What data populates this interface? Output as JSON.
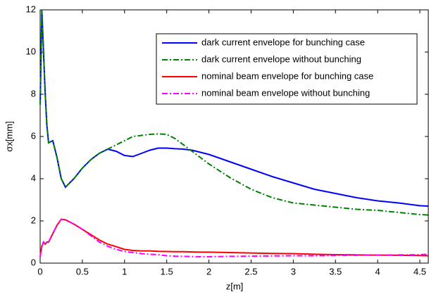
{
  "chart_data": {
    "type": "line",
    "xlabel": "z[m]",
    "ylabel": "σx[mm]",
    "x": [
      0,
      0.02,
      0.04,
      0.06,
      0.08,
      0.1,
      0.15,
      0.2,
      0.25,
      0.3,
      0.4,
      0.5,
      0.6,
      0.7,
      0.8,
      0.9,
      1.0,
      1.1,
      1.2,
      1.3,
      1.4,
      1.5,
      1.6,
      1.7,
      1.8,
      1.9,
      2.0,
      2.25,
      2.5,
      2.75,
      3.0,
      3.25,
      3.5,
      3.75,
      4.0,
      4.25,
      4.5,
      4.6
    ],
    "series": [
      {
        "name": "dark current envelope for bunching case",
        "color": "#0000ff",
        "style": "solid",
        "values": [
          7.5,
          12,
          10,
          8,
          6.5,
          5.7,
          5.8,
          5.0,
          4.0,
          3.6,
          4.0,
          4.5,
          4.9,
          5.2,
          5.4,
          5.3,
          5.1,
          5.05,
          5.2,
          5.35,
          5.45,
          5.45,
          5.42,
          5.4,
          5.35,
          5.25,
          5.15,
          4.8,
          4.45,
          4.1,
          3.8,
          3.5,
          3.3,
          3.1,
          2.95,
          2.85,
          2.72,
          2.7
        ]
      },
      {
        "name": "dark current envelope without bunching",
        "color": "#008000",
        "style": "dashdot",
        "values": [
          7.5,
          12,
          10,
          8,
          6.5,
          5.7,
          5.8,
          5.0,
          4.0,
          3.6,
          4.0,
          4.5,
          4.9,
          5.2,
          5.4,
          5.6,
          5.8,
          6.0,
          6.05,
          6.1,
          6.12,
          6.1,
          5.9,
          5.6,
          5.3,
          5.0,
          4.7,
          4.05,
          3.5,
          3.1,
          2.85,
          2.75,
          2.65,
          2.55,
          2.5,
          2.4,
          2.3,
          2.28
        ]
      },
      {
        "name": "nominal beam envelope for bunching case",
        "color": "#ff0000",
        "style": "solid",
        "values": [
          0.3,
          0.8,
          1.0,
          0.9,
          1.0,
          1.0,
          1.4,
          1.8,
          2.08,
          2.05,
          1.85,
          1.6,
          1.35,
          1.1,
          0.9,
          0.78,
          0.65,
          0.6,
          0.58,
          0.58,
          0.56,
          0.55,
          0.54,
          0.54,
          0.53,
          0.52,
          0.52,
          0.5,
          0.48,
          0.46,
          0.45,
          0.42,
          0.4,
          0.39,
          0.38,
          0.37,
          0.36,
          0.35
        ]
      },
      {
        "name": "nominal beam envelope without bunching",
        "color": "#ff00ff",
        "style": "dashdot",
        "values": [
          0.3,
          0.8,
          1.0,
          0.9,
          1.0,
          1.0,
          1.4,
          1.8,
          2.08,
          2.05,
          1.85,
          1.6,
          1.3,
          1.0,
          0.8,
          0.65,
          0.55,
          0.5,
          0.45,
          0.42,
          0.4,
          0.35,
          0.33,
          0.32,
          0.31,
          0.3,
          0.3,
          0.32,
          0.33,
          0.34,
          0.35,
          0.35,
          0.36,
          0.37,
          0.38,
          0.39,
          0.4,
          0.42
        ]
      }
    ],
    "xlim": [
      0,
      4.6
    ],
    "xticks": [
      0,
      0.5,
      1,
      1.5,
      2,
      2.5,
      3,
      3.5,
      4,
      4.5
    ],
    "ylim": [
      0,
      12
    ],
    "yticks": [
      0,
      2,
      4,
      6,
      8,
      10,
      12
    ],
    "grid": false,
    "legend": "upper right"
  }
}
